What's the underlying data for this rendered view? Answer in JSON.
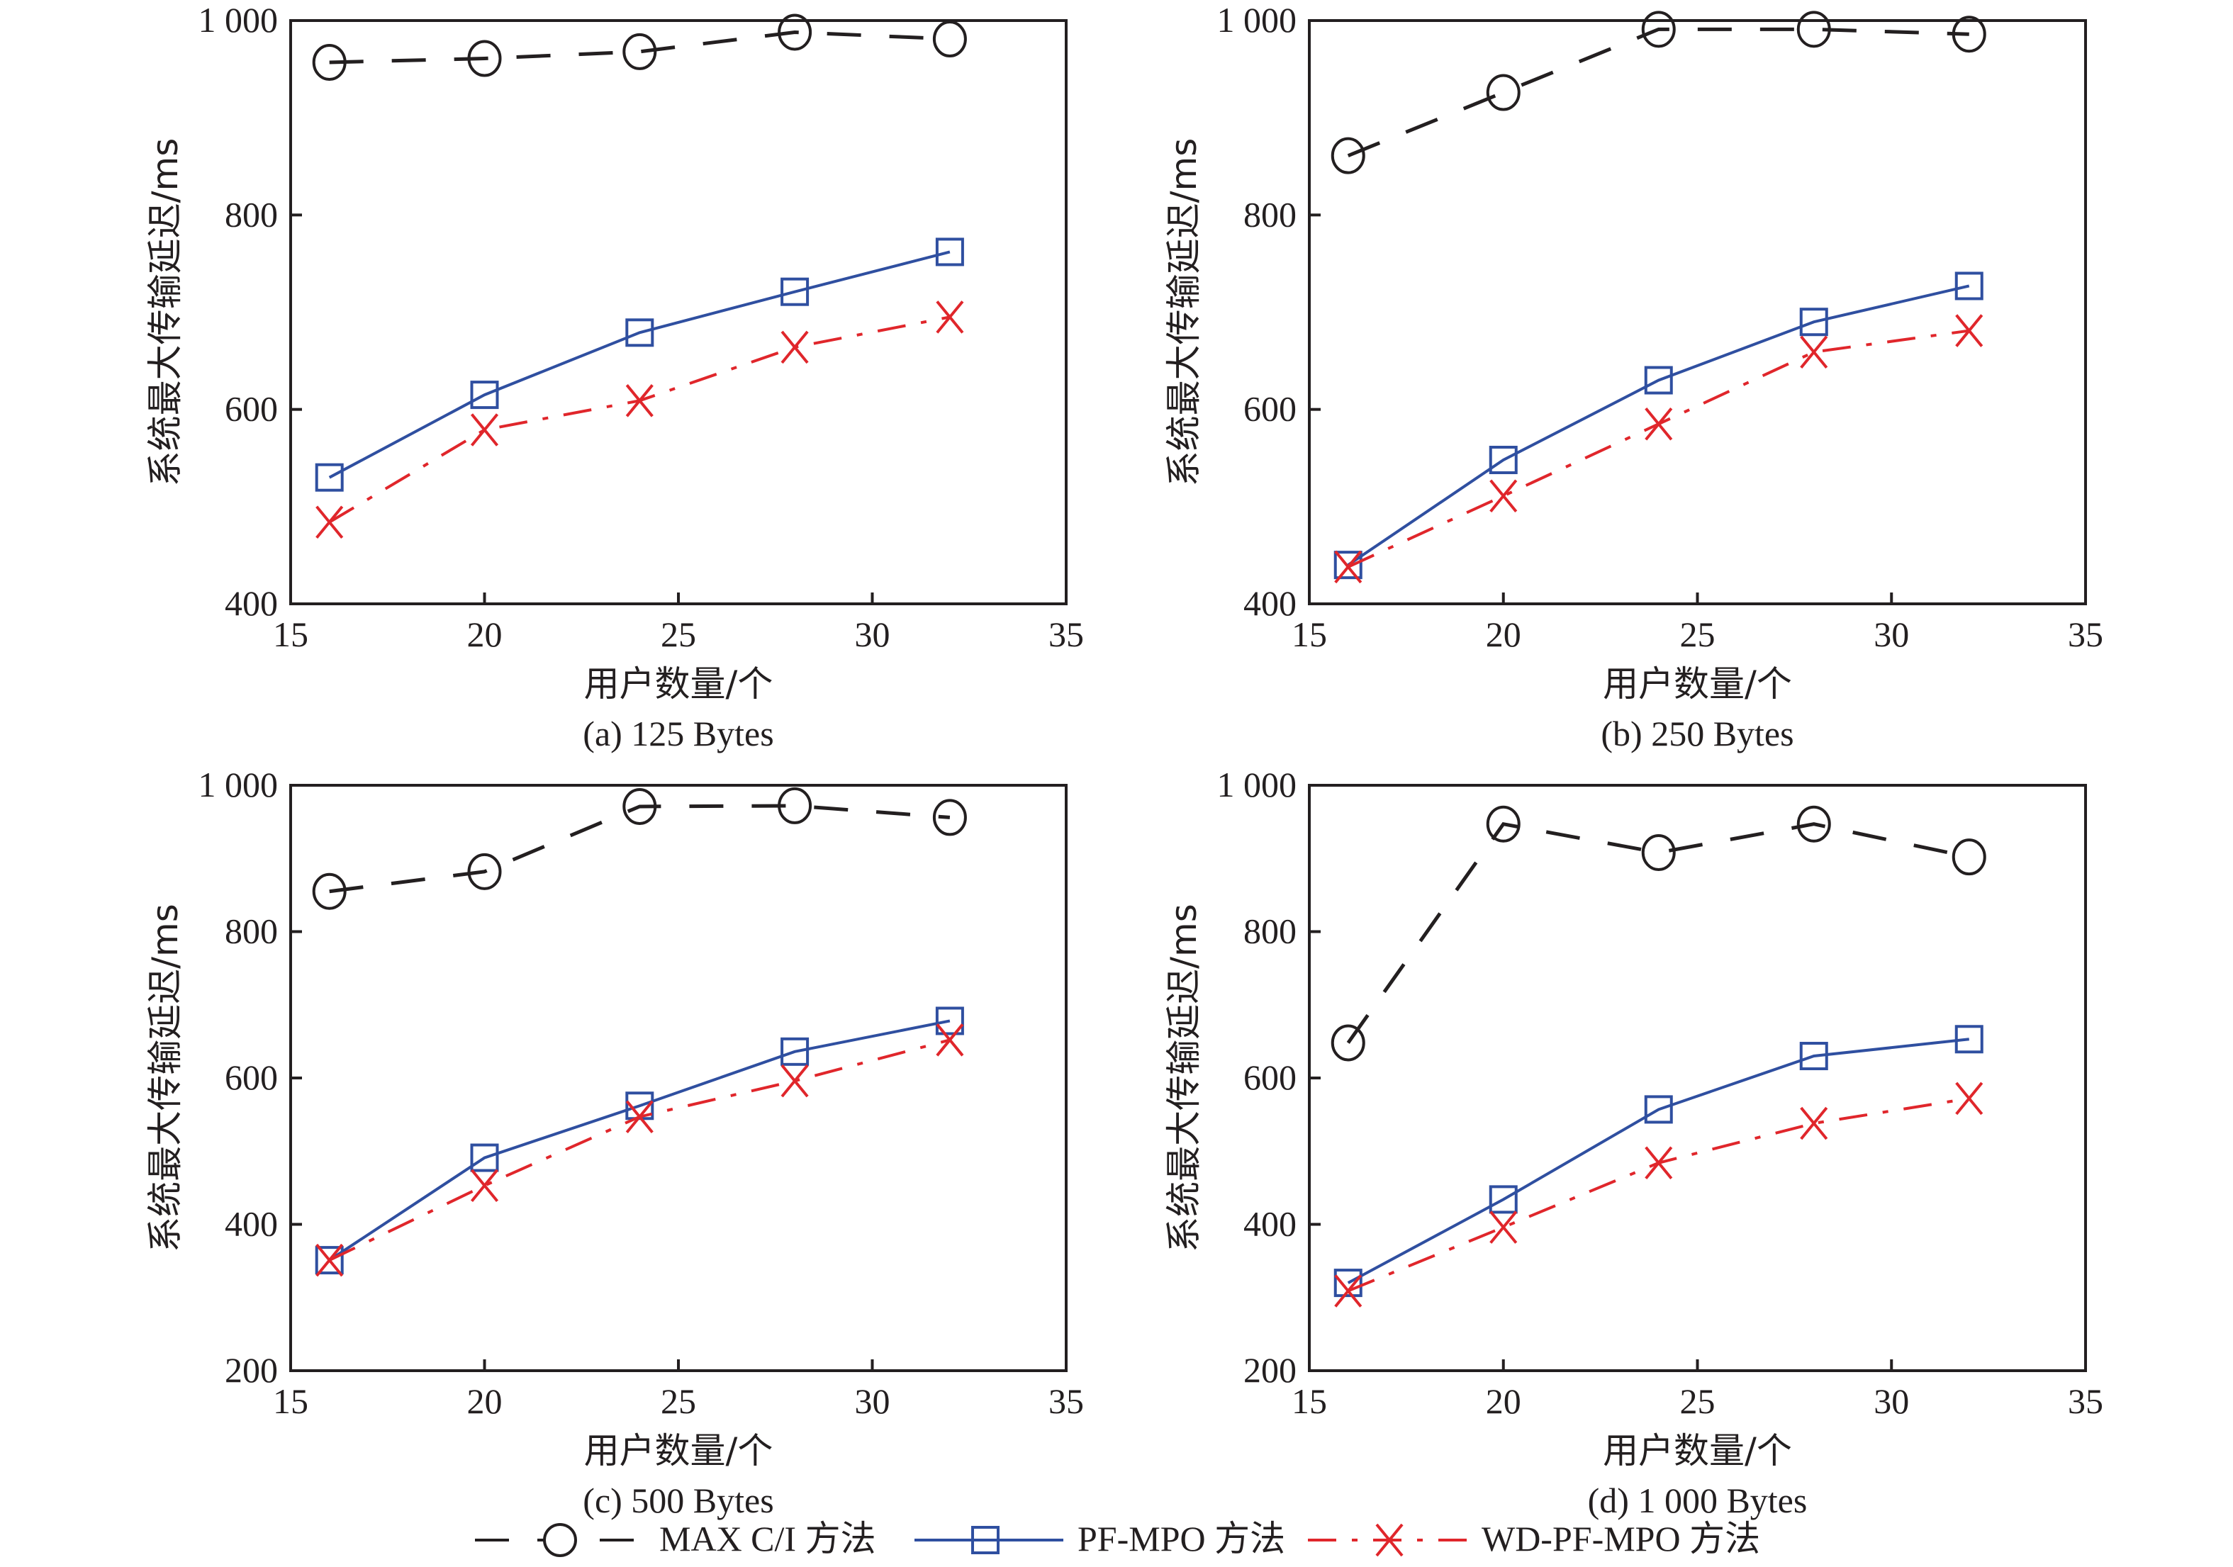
{
  "chart_data": [
    {
      "type": "line",
      "id": "a",
      "caption": "(a) 125 Bytes",
      "xlabel": "用户数量/个",
      "ylabel": "系统最大传输延迟/ms",
      "x": [
        16,
        20,
        24,
        28,
        32
      ],
      "xlim": [
        15,
        35
      ],
      "ylim": [
        400,
        1000
      ],
      "xticks": [
        15,
        20,
        25,
        30,
        35
      ],
      "yticks": [
        400,
        600,
        800,
        1000
      ],
      "ytick_labels": [
        "400",
        "600",
        "800",
        "1 000"
      ],
      "grid": false,
      "series": [
        {
          "name": "MAX C/I 方法",
          "values": [
            957,
            961,
            968,
            988,
            981
          ]
        },
        {
          "name": "PF-MPO 方法",
          "values": [
            530,
            615,
            679,
            721,
            762
          ]
        },
        {
          "name": "WD-PF-MPO 方法",
          "values": [
            484,
            579,
            609,
            664,
            695
          ]
        }
      ]
    },
    {
      "type": "line",
      "id": "b",
      "caption": "(b) 250 Bytes",
      "xlabel": "用户数量/个",
      "ylabel": "系统最大传输延迟/ms",
      "x": [
        16,
        20,
        24,
        28,
        32
      ],
      "xlim": [
        15,
        35
      ],
      "ylim": [
        400,
        1000
      ],
      "xticks": [
        15,
        20,
        25,
        30,
        35
      ],
      "yticks": [
        400,
        600,
        800,
        1000
      ],
      "ytick_labels": [
        "400",
        "600",
        "800",
        "1 000"
      ],
      "grid": false,
      "series": [
        {
          "name": "MAX C/I 方法",
          "values": [
            861,
            926,
            991,
            991,
            986
          ]
        },
        {
          "name": "PF-MPO 方法",
          "values": [
            440,
            548,
            630,
            690,
            727
          ]
        },
        {
          "name": "WD-PF-MPO 方法",
          "values": [
            438,
            511,
            585,
            659,
            681
          ]
        }
      ]
    },
    {
      "type": "line",
      "id": "c",
      "caption": "(c) 500 Bytes",
      "xlabel": "用户数量/个",
      "ylabel": "系统最大传输延迟/ms",
      "x": [
        16,
        20,
        24,
        28,
        32
      ],
      "xlim": [
        15,
        35
      ],
      "ylim": [
        200,
        1000
      ],
      "xticks": [
        15,
        20,
        25,
        30,
        35
      ],
      "yticks": [
        200,
        400,
        600,
        800,
        1000
      ],
      "ytick_labels": [
        "200",
        "400",
        "600",
        "800",
        "1 000"
      ],
      "grid": false,
      "series": [
        {
          "name": "MAX C/I 方法",
          "values": [
            855,
            882,
            971,
            972,
            956
          ]
        },
        {
          "name": "PF-MPO 方法",
          "values": [
            351,
            491,
            562,
            636,
            678
          ]
        },
        {
          "name": "WD-PF-MPO 方法",
          "values": [
            351,
            453,
            547,
            596,
            652
          ]
        }
      ]
    },
    {
      "type": "line",
      "id": "d",
      "caption": "(d) 1 000 Bytes",
      "xlabel": "用户数量/个",
      "ylabel": "系统最大传输延迟/ms",
      "x": [
        16,
        20,
        24,
        28,
        32
      ],
      "xlim": [
        15,
        35
      ],
      "ylim": [
        200,
        1000
      ],
      "xticks": [
        15,
        20,
        25,
        30,
        35
      ],
      "yticks": [
        200,
        400,
        600,
        800,
        1000
      ],
      "ytick_labels": [
        "200",
        "400",
        "600",
        "800",
        "1 000"
      ],
      "grid": false,
      "series": [
        {
          "name": "MAX C/I 方法",
          "values": [
            648,
            947,
            908,
            947,
            902
          ]
        },
        {
          "name": "PF-MPO 方法",
          "values": [
            320,
            434,
            557,
            630,
            653
          ]
        },
        {
          "name": "WD-PF-MPO 方法",
          "values": [
            309,
            396,
            484,
            538,
            572
          ]
        }
      ]
    }
  ],
  "legend": {
    "placement": "bottom-center",
    "items": [
      {
        "label": "MAX C/I 方法",
        "marker": "circle-icon",
        "line": "dashed",
        "color": "#231f20"
      },
      {
        "label": "PF-MPO 方法",
        "marker": "square-icon",
        "line": "solid",
        "color": "#2f4fa0"
      },
      {
        "label": "WD-PF-MPO 方法",
        "marker": "x-icon",
        "line": "dash-dot",
        "color": "#e0262b"
      }
    ]
  },
  "colors": {
    "max_ci": "#231f20",
    "pf_mpo": "#2f4fa0",
    "wd_pf_mpo": "#e0262b",
    "axis": "#231f20"
  }
}
